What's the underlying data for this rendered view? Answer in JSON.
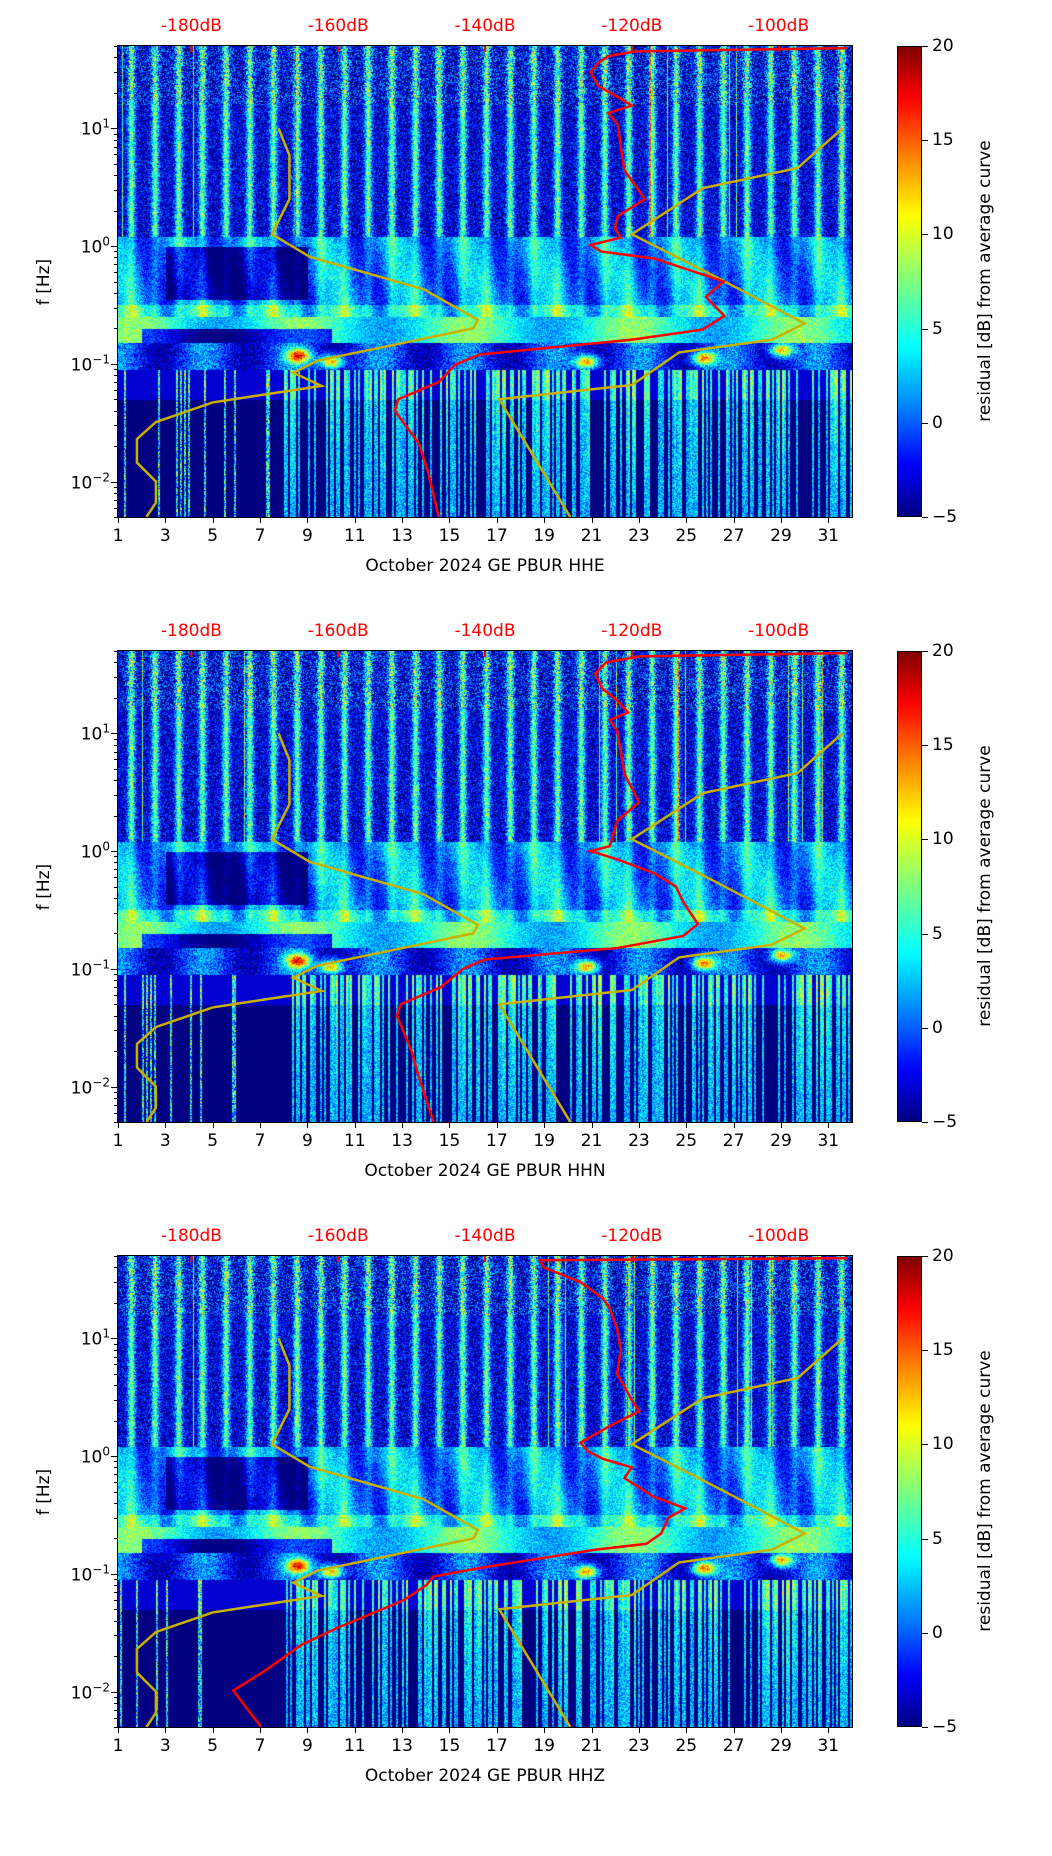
{
  "colorbar": {
    "label": "residual [dB] from average curve",
    "range": [
      -5,
      20
    ],
    "ticks": [
      "−5",
      "0",
      "5",
      "10",
      "15",
      "20"
    ],
    "tick_values": [
      -5,
      0,
      5,
      10,
      15,
      20
    ]
  },
  "colors": {
    "avg_curve": "#ff0000",
    "reference": "#c8b000",
    "top_axis": "#ff0000"
  },
  "reference_lines": [
    {
      "name": "low noise model",
      "points": [
        [
          7.78,
          10
        ],
        [
          8.24,
          5.9
        ],
        [
          8.24,
          2.5
        ],
        [
          7.5,
          1.26
        ],
        [
          9.1,
          0.81
        ],
        [
          13.9,
          0.43
        ],
        [
          16.2,
          0.236
        ],
        [
          16.0,
          0.2
        ],
        [
          9.4,
          0.106
        ],
        [
          8.4,
          0.084
        ],
        [
          9.6,
          0.065
        ],
        [
          5.0,
          0.047
        ],
        [
          2.6,
          0.032
        ],
        [
          1.8,
          0.023
        ],
        [
          1.8,
          0.0145
        ],
        [
          2.6,
          0.01
        ],
        [
          2.6,
          0.0066
        ],
        [
          2.2,
          0.005
        ]
      ]
    },
    {
      "name": "high noise model",
      "points": [
        [
          31.6,
          10
        ],
        [
          29.7,
          4.6
        ],
        [
          25.7,
          3.1
        ],
        [
          22.7,
          1.26
        ],
        [
          26.3,
          0.54
        ],
        [
          30.0,
          0.22
        ],
        [
          28.6,
          0.16
        ],
        [
          24.7,
          0.125
        ],
        [
          22.7,
          0.066
        ],
        [
          17.1,
          0.05
        ],
        [
          20.1,
          0.005
        ]
      ]
    }
  ],
  "chart_data": [
    {
      "type": "heatmap",
      "xlabel": "October 2024 GE PBUR  HHE",
      "ylabel": "f [Hz]",
      "xlim": [
        1,
        32
      ],
      "ylim": [
        0.005,
        50
      ],
      "yscale": "log",
      "xticks": [
        "1",
        "3",
        "5",
        "7",
        "9",
        "11",
        "13",
        "15",
        "17",
        "19",
        "21",
        "23",
        "25",
        "27",
        "29",
        "31"
      ],
      "yticks": [
        {
          "base": "10",
          "exp": "−2",
          "value": 0.01
        },
        {
          "base": "10",
          "exp": "−1",
          "value": 0.1
        },
        {
          "base": "10",
          "exp": "0",
          "value": 1
        },
        {
          "base": "10",
          "exp": "1",
          "value": 10
        }
      ],
      "top_axis": {
        "range": [
          -190,
          -90
        ],
        "values": [
          -180,
          -160,
          -140,
          -120,
          -100
        ],
        "labels": [
          "-180dB",
          "-160dB",
          "-140dB",
          "-120dB",
          "-100dB"
        ]
      },
      "avg_curve_db": [
        [
          -90.6,
          48
        ],
        [
          -119.5,
          45
        ],
        [
          -123.2,
          41
        ],
        [
          -124.6,
          36
        ],
        [
          -125.6,
          30
        ],
        [
          -124.6,
          23
        ],
        [
          -122.3,
          19
        ],
        [
          -120,
          15.6
        ],
        [
          -123.2,
          13.5
        ],
        [
          -121.9,
          10.8
        ],
        [
          -121.5,
          6.9
        ],
        [
          -121,
          4.4
        ],
        [
          -118.2,
          2.5
        ],
        [
          -121.9,
          1.8
        ],
        [
          -122.3,
          1.42
        ],
        [
          -121.5,
          1.18
        ],
        [
          -125.6,
          1.02
        ],
        [
          -124.2,
          0.9
        ],
        [
          -116.8,
          0.78
        ],
        [
          -107.5,
          0.5
        ],
        [
          -109.9,
          0.37
        ],
        [
          -107.4,
          0.255
        ],
        [
          -110.4,
          0.195
        ],
        [
          -120.1,
          0.16
        ],
        [
          -140.7,
          0.12
        ],
        [
          -144,
          0.099
        ],
        [
          -146.3,
          0.07
        ],
        [
          -151.8,
          0.05
        ],
        [
          -152.3,
          0.04
        ],
        [
          -149,
          0.021
        ],
        [
          -147.7,
          0.0117
        ],
        [
          -146.3,
          0.005
        ]
      ]
    },
    {
      "type": "heatmap",
      "xlabel": "October 2024 GE PBUR  HHN",
      "ylabel": "f [Hz]",
      "xlim": [
        1,
        32
      ],
      "ylim": [
        0.005,
        50
      ],
      "yscale": "log",
      "xticks": [
        "1",
        "3",
        "5",
        "7",
        "9",
        "11",
        "13",
        "15",
        "17",
        "19",
        "21",
        "23",
        "25",
        "27",
        "29",
        "31"
      ],
      "yticks": [
        {
          "base": "10",
          "exp": "−2",
          "value": 0.01
        },
        {
          "base": "10",
          "exp": "−1",
          "value": 0.1
        },
        {
          "base": "10",
          "exp": "0",
          "value": 1
        },
        {
          "base": "10",
          "exp": "1",
          "value": 10
        }
      ],
      "top_axis": {
        "range": [
          -190,
          -90
        ],
        "values": [
          -180,
          -160,
          -140,
          -120,
          -100
        ],
        "labels": [
          "-180dB",
          "-160dB",
          "-140dB",
          "-120dB",
          "-100dB"
        ]
      },
      "avg_curve_db": [
        [
          -90.6,
          48
        ],
        [
          -119,
          45
        ],
        [
          -123.5,
          40
        ],
        [
          -125,
          32
        ],
        [
          -124,
          24
        ],
        [
          -122,
          19
        ],
        [
          -120.5,
          15
        ],
        [
          -123,
          13
        ],
        [
          -122,
          10.5
        ],
        [
          -121.5,
          7
        ],
        [
          -121,
          4.5
        ],
        [
          -119,
          2.6
        ],
        [
          -122,
          1.8
        ],
        [
          -122.5,
          1.4
        ],
        [
          -123,
          1.1
        ],
        [
          -125.6,
          1.0
        ],
        [
          -122,
          0.85
        ],
        [
          -117,
          0.65
        ],
        [
          -114,
          0.5
        ],
        [
          -113,
          0.37
        ],
        [
          -111,
          0.24
        ],
        [
          -113,
          0.19
        ],
        [
          -122,
          0.15
        ],
        [
          -140,
          0.12
        ],
        [
          -143,
          0.1
        ],
        [
          -146,
          0.07
        ],
        [
          -151.5,
          0.05
        ],
        [
          -152,
          0.04
        ],
        [
          -150,
          0.02
        ],
        [
          -149,
          0.012
        ],
        [
          -147,
          0.005
        ]
      ]
    },
    {
      "type": "heatmap",
      "xlabel": "October 2024 GE PBUR  HHZ",
      "ylabel": "f [Hz]",
      "xlim": [
        1,
        32
      ],
      "ylim": [
        0.005,
        50
      ],
      "yscale": "log",
      "xticks": [
        "1",
        "3",
        "5",
        "7",
        "9",
        "11",
        "13",
        "15",
        "17",
        "19",
        "21",
        "23",
        "25",
        "27",
        "29",
        "31"
      ],
      "yticks": [
        {
          "base": "10",
          "exp": "−2",
          "value": 0.01
        },
        {
          "base": "10",
          "exp": "−1",
          "value": 0.1
        },
        {
          "base": "10",
          "exp": "0",
          "value": 1
        },
        {
          "base": "10",
          "exp": "1",
          "value": 10
        }
      ],
      "top_axis": {
        "range": [
          -190,
          -90
        ],
        "values": [
          -180,
          -160,
          -140,
          -120,
          -100
        ],
        "labels": [
          "-180dB",
          "-160dB",
          "-140dB",
          "-120dB",
          "-100dB"
        ]
      },
      "avg_curve_db": [
        [
          -90.6,
          48
        ],
        [
          -132.5,
          46
        ],
        [
          -132,
          40
        ],
        [
          -127,
          30
        ],
        [
          -124,
          22
        ],
        [
          -123,
          18
        ],
        [
          -122,
          12
        ],
        [
          -121.5,
          8
        ],
        [
          -122,
          5
        ],
        [
          -120,
          3
        ],
        [
          -119,
          2.4
        ],
        [
          -123,
          1.8
        ],
        [
          -127,
          1.3
        ],
        [
          -126,
          1.1
        ],
        [
          -124,
          0.95
        ],
        [
          -120,
          0.8
        ],
        [
          -121,
          0.65
        ],
        [
          -117,
          0.45
        ],
        [
          -112.7,
          0.36
        ],
        [
          -115,
          0.3
        ],
        [
          -116,
          0.22
        ],
        [
          -118,
          0.18
        ],
        [
          -125,
          0.16
        ],
        [
          -139.6,
          0.115
        ],
        [
          -147,
          0.095
        ],
        [
          -148,
          0.08
        ],
        [
          -151,
          0.06
        ],
        [
          -154,
          0.05
        ],
        [
          -160,
          0.035
        ],
        [
          -165,
          0.025
        ],
        [
          -170,
          0.015
        ],
        [
          -174.3,
          0.0102
        ],
        [
          -173,
          0.008
        ],
        [
          -170.5,
          0.005
        ]
      ]
    }
  ]
}
